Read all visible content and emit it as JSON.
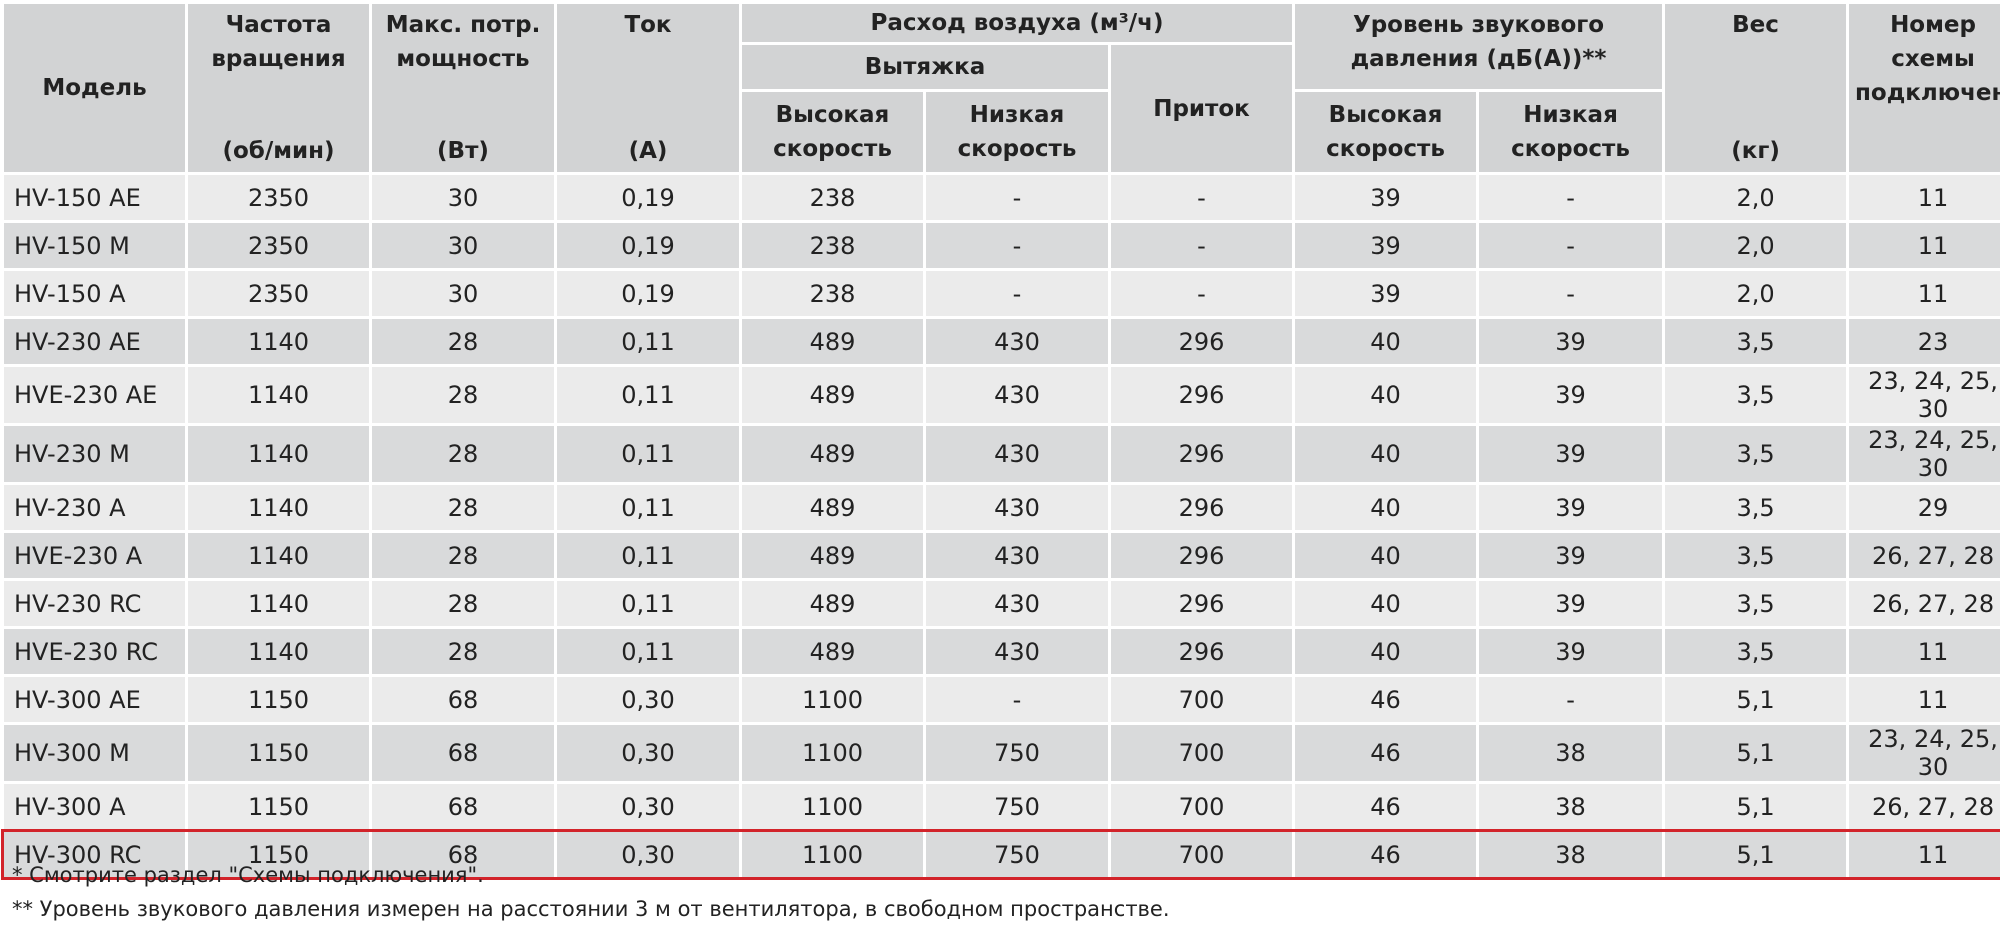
{
  "header": {
    "model": "Модель",
    "rpm": {
      "title": "Частота вращения",
      "unit": "(об/мин)"
    },
    "power": {
      "title": "Макс. потр. мощность",
      "unit": "(Вт)"
    },
    "current": {
      "title": "Ток",
      "unit": "(А)"
    },
    "airflow": {
      "title": "Расход воздуха (м³/ч)",
      "exhaust": "Вытяжка",
      "supply": "Приток",
      "high": "Высокая скорость",
      "low": "Низкая скорость"
    },
    "noise": {
      "title": "Уровень звукового давления (дБ(А))**",
      "high": "Высокая скорость",
      "low": "Низкая скорость"
    },
    "weight": {
      "title": "Вес",
      "unit": "(кг)"
    },
    "scheme": "Номер схемы подключения*"
  },
  "table": {
    "rows": [
      [
        "HV-150 AE",
        "2350",
        "30",
        "0,19",
        "238",
        "-",
        "-",
        "39",
        "-",
        "2,0",
        "11"
      ],
      [
        "HV-150 M",
        "2350",
        "30",
        "0,19",
        "238",
        "-",
        "-",
        "39",
        "-",
        "2,0",
        "11"
      ],
      [
        "HV-150 A",
        "2350",
        "30",
        "0,19",
        "238",
        "-",
        "-",
        "39",
        "-",
        "2,0",
        "11"
      ],
      [
        "HV-230 AE",
        "1140",
        "28",
        "0,11",
        "489",
        "430",
        "296",
        "40",
        "39",
        "3,5",
        "23"
      ],
      [
        "HVE-230 AE",
        "1140",
        "28",
        "0,11",
        "489",
        "430",
        "296",
        "40",
        "39",
        "3,5",
        "23, 24, 25, 30"
      ],
      [
        "HV-230 M",
        "1140",
        "28",
        "0,11",
        "489",
        "430",
        "296",
        "40",
        "39",
        "3,5",
        "23, 24, 25, 30"
      ],
      [
        "HV-230 A",
        "1140",
        "28",
        "0,11",
        "489",
        "430",
        "296",
        "40",
        "39",
        "3,5",
        "29"
      ],
      [
        "HVE-230 A",
        "1140",
        "28",
        "0,11",
        "489",
        "430",
        "296",
        "40",
        "39",
        "3,5",
        "26, 27, 28"
      ],
      [
        "HV-230 RC",
        "1140",
        "28",
        "0,11",
        "489",
        "430",
        "296",
        "40",
        "39",
        "3,5",
        "26, 27, 28"
      ],
      [
        "HVE-230 RC",
        "1140",
        "28",
        "0,11",
        "489",
        "430",
        "296",
        "40",
        "39",
        "3,5",
        "11"
      ],
      [
        "HV-300 AE",
        "1150",
        "68",
        "0,30",
        "1100",
        "-",
        "700",
        "46",
        "-",
        "5,1",
        "11"
      ],
      [
        "HV-300 M",
        "1150",
        "68",
        "0,30",
        "1100",
        "750",
        "700",
        "46",
        "38",
        "5,1",
        "23, 24, 25, 30"
      ],
      [
        "HV-300 A",
        "1150",
        "68",
        "0,30",
        "1100",
        "750",
        "700",
        "46",
        "38",
        "5,1",
        "26, 27, 28"
      ],
      [
        "HV-300 RC",
        "1150",
        "68",
        "0,30",
        "1100",
        "750",
        "700",
        "46",
        "38",
        "5,1",
        "11"
      ]
    ],
    "highlighted_row": 13
  },
  "footnotes": [
    "* Смотрите раздел \"Схемы подключения\".",
    "** Уровень звукового давления измерен на расстоянии 3 м от вентилятора, в свободном пространстве."
  ]
}
